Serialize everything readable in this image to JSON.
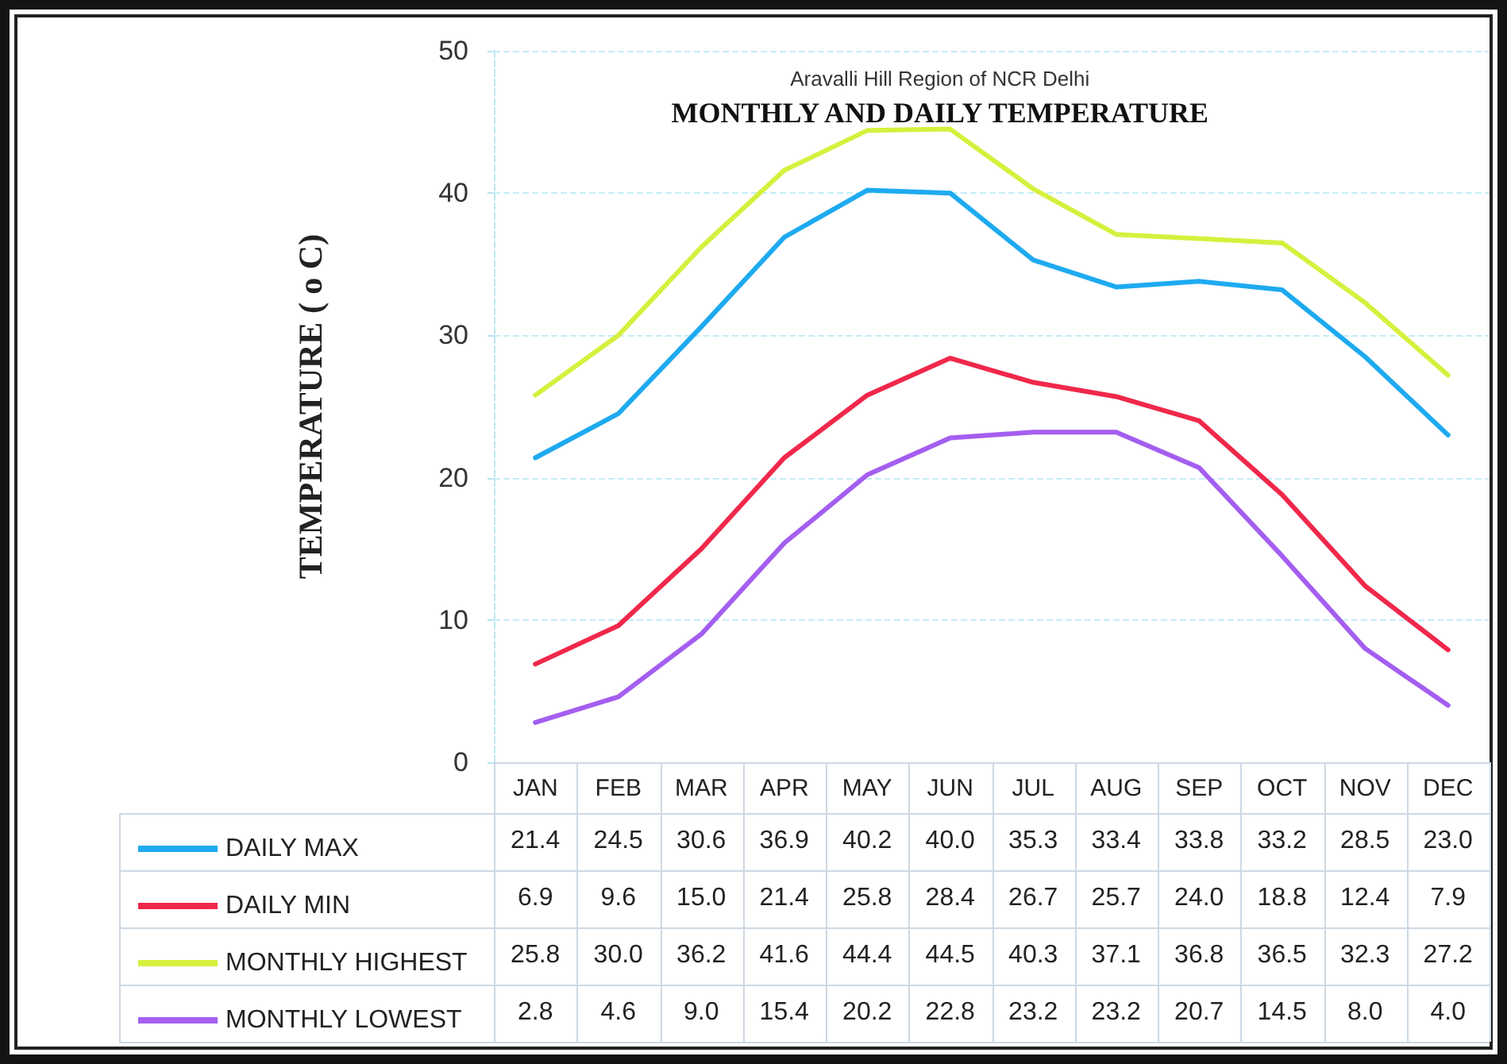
{
  "chart_data": {
    "type": "line",
    "title": "MONTHLY AND DAILY TEMPERATURE",
    "subtitle": "Aravalli Hill Region of NCR Delhi",
    "ylabel": "TEMPERATURE ( o C)",
    "categories": [
      "JAN",
      "FEB",
      "MAR",
      "APR",
      "MAY",
      "JUN",
      "JUL",
      "AUG",
      "SEP",
      "OCT",
      "NOV",
      "DEC"
    ],
    "series": [
      {
        "name": "DAILY MAX",
        "color": "#1eaaf0",
        "values": [
          21.4,
          24.5,
          30.6,
          36.9,
          40.2,
          40.0,
          35.3,
          33.4,
          33.8,
          33.2,
          28.5,
          23.0
        ],
        "value_labels": [
          "21.4",
          "24.5",
          "30.6",
          "36.9",
          "40.2",
          "40.0",
          "35.3",
          "33.4",
          "33.8",
          "33.2",
          "28.5",
          "23.0"
        ]
      },
      {
        "name": "DAILY MIN",
        "color": "#f0284b",
        "values": [
          6.9,
          9.6,
          15.0,
          21.4,
          25.8,
          28.4,
          26.7,
          25.7,
          24.0,
          18.8,
          12.4,
          7.9
        ],
        "value_labels": [
          "6.9",
          "9.6",
          "15.0",
          "21.4",
          "25.8",
          "28.4",
          "26.7",
          "25.7",
          "24.0",
          "18.8",
          "12.4",
          "7.9"
        ]
      },
      {
        "name": "MONTHLY HIGHEST",
        "color": "#d6f03e",
        "values": [
          25.8,
          30.0,
          36.2,
          41.6,
          44.4,
          44.5,
          40.3,
          37.1,
          36.8,
          36.5,
          32.3,
          27.2
        ],
        "value_labels": [
          "25.8",
          "30.0",
          "36.2",
          "41.6",
          "44.4",
          "44.5",
          "40.3",
          "37.1",
          "36.8",
          "36.5",
          "32.3",
          "27.2"
        ]
      },
      {
        "name": "MONTHLY LOWEST",
        "color": "#a45ef0",
        "values": [
          2.8,
          4.6,
          9.0,
          15.4,
          20.2,
          22.8,
          23.2,
          23.2,
          20.7,
          14.5,
          8.0,
          4.0
        ],
        "value_labels": [
          "2.8",
          "4.6",
          "9.0",
          "15.4",
          "20.2",
          "22.8",
          "23.2",
          "23.2",
          "20.7",
          "14.5",
          "8.0",
          "4.0"
        ]
      }
    ],
    "ylim": [
      0,
      50
    ],
    "yticks": [
      0,
      10,
      20,
      30,
      40,
      50
    ],
    "grid": "y",
    "legend": "bottom left",
    "marker": "none",
    "line_style": "solid"
  }
}
